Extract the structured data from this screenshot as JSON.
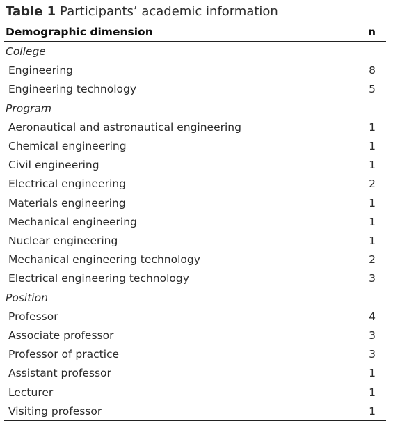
{
  "caption": {
    "label": "Table 1",
    "text": "Participants’ academic information"
  },
  "table": {
    "columns": [
      "Demographic dimension",
      "n"
    ],
    "sections": [
      {
        "heading": "College",
        "rows": [
          [
            "Engineering",
            8
          ],
          [
            "Engineering technology",
            5
          ]
        ]
      },
      {
        "heading": "Program",
        "rows": [
          [
            "Aeronautical and astronautical engineering",
            1
          ],
          [
            "Chemical engineering",
            1
          ],
          [
            "Civil engineering",
            1
          ],
          [
            "Electrical engineering",
            2
          ],
          [
            "Materials engineering",
            1
          ],
          [
            "Mechanical engineering",
            1
          ],
          [
            "Nuclear engineering",
            1
          ],
          [
            "Mechanical engineering technology",
            2
          ],
          [
            "Electrical engineering technology",
            3
          ]
        ]
      },
      {
        "heading": "Position",
        "rows": [
          [
            "Professor",
            4
          ],
          [
            "Associate professor",
            3
          ],
          [
            "Professor of practice",
            3
          ],
          [
            "Assistant professor",
            1
          ],
          [
            "Lecturer",
            1
          ],
          [
            "Visiting professor",
            1
          ]
        ]
      }
    ]
  }
}
